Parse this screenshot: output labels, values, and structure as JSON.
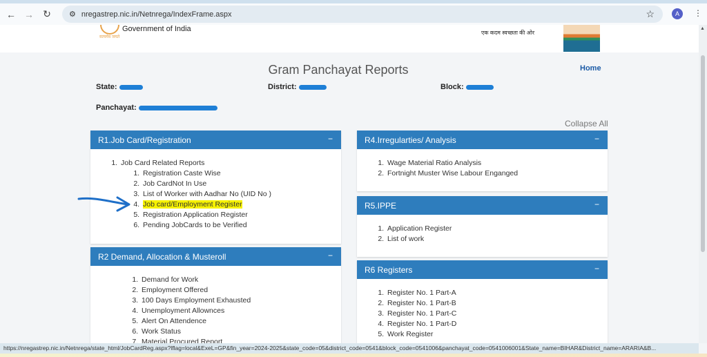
{
  "browser": {
    "url": "nregastrep.nic.in/Netnrega/IndexFrame.aspx",
    "avatar": "A",
    "status_url": "https://nregastrep.nic.in/Netnrega/state_html/JobCardReg.aspx?lflag=local&ExeL=GP&fin_year=2024-2025&state_code=05&district_code=0541&block_code=0541006&panchayat_code=0541006001&State_name=BIHAR&District_name=ARARIA&B..."
  },
  "header": {
    "gov": "Government of India",
    "emblem_sub": "सत्यमेव जयते",
    "slogan": "एक कदम स्वच्छता की ओर"
  },
  "page": {
    "title": "Gram Panchayat Reports",
    "home": "Home",
    "collapse_all": "Collapse All",
    "state_label": "State:",
    "district_label": "District:",
    "block_label": "Block:",
    "panchayat_label": "Panchayat:"
  },
  "panels": {
    "r1": {
      "title": "R1.Job Card/Registration",
      "group": "Job Card Related Reports",
      "items": [
        "Registration Caste Wise",
        "Job CardNot In Use",
        "List of Worker with Aadhar No (UID No )",
        "Job card/Employment Register",
        "Registration Application Register",
        "Pending JobCards to be Verified"
      ]
    },
    "r2": {
      "title": "R2 Demand, Allocation & Musteroll",
      "items": [
        "Demand for Work",
        "Employment Offered",
        "100 Days Employment Exhausted",
        "Unemployment Allownces",
        "Alert On Attendence",
        "Work Status",
        "Material Procured Report"
      ]
    },
    "r4": {
      "title": "R4.Irregularties/ Analysis",
      "items": [
        "Wage Material Ratio Analysis",
        "Fortnight Muster Wise Labour Enganged"
      ]
    },
    "r5": {
      "title": "R5.IPPE",
      "items": [
        "Application Register",
        "List of work"
      ]
    },
    "r6": {
      "title": "R6 Registers",
      "items": [
        "Register No. 1 Part-A",
        "Register No. 1 Part-B",
        "Register No. 1 Part-C",
        "Register No. 1 Part-D",
        "Work Register"
      ]
    },
    "collapse_symbol": "−"
  },
  "colors": {
    "panel_header": "#2e7dbd",
    "highlight": "#f7f200",
    "redaction": "#1e7fd6"
  }
}
